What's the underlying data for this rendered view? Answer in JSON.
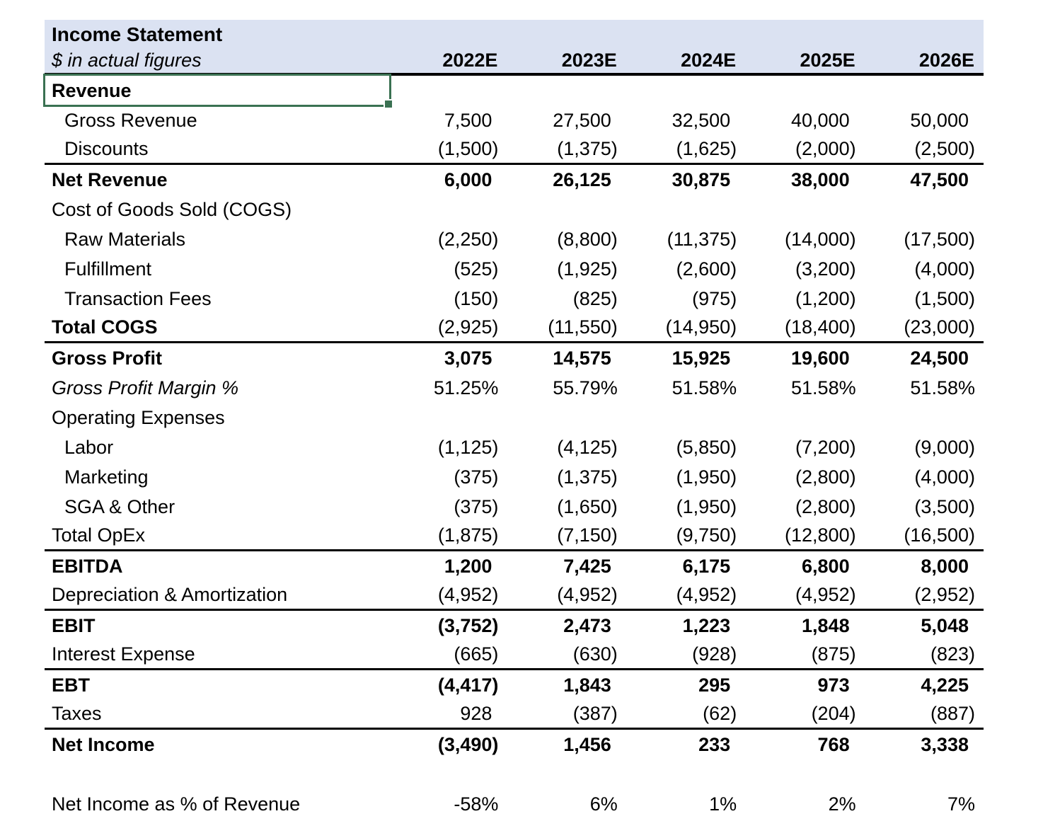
{
  "table": {
    "title": "Income Statement",
    "subtitle": "$ in actual figures",
    "columns": [
      "2022E",
      "2023E",
      "2024E",
      "2025E",
      "2026E"
    ],
    "selection": {
      "selected_cell_label": "Revenue",
      "border_color": "#3a7152"
    },
    "colors": {
      "header_bg": "#dbe2f2",
      "rule_color": "#000000",
      "text": "#000000"
    },
    "rows": [
      {
        "label": "Revenue",
        "bold": "label",
        "selected": true,
        "values": [
          "",
          "",
          "",
          "",
          ""
        ]
      },
      {
        "label": "Gross Revenue",
        "indent": true,
        "values": [
          "7,500",
          "27,500",
          "32,500",
          "40,000",
          "50,000"
        ]
      },
      {
        "label": "Discounts",
        "indent": true,
        "border": true,
        "values": [
          "(1,500)",
          "(1,375)",
          "(1,625)",
          "(2,000)",
          "(2,500)"
        ]
      },
      {
        "label": "Net Revenue",
        "bold": "all",
        "values": [
          "6,000",
          "26,125",
          "30,875",
          "38,000",
          "47,500"
        ]
      },
      {
        "label": "Cost of Goods Sold (COGS)",
        "values": [
          "",
          "",
          "",
          "",
          ""
        ]
      },
      {
        "label": "Raw Materials",
        "indent": true,
        "values": [
          "(2,250)",
          "(8,800)",
          "(11,375)",
          "(14,000)",
          "(17,500)"
        ]
      },
      {
        "label": "Fulfillment",
        "indent": true,
        "values": [
          "(525)",
          "(1,925)",
          "(2,600)",
          "(3,200)",
          "(4,000)"
        ]
      },
      {
        "label": "Transaction Fees",
        "indent": true,
        "values": [
          "(150)",
          "(825)",
          "(975)",
          "(1,200)",
          "(1,500)"
        ]
      },
      {
        "label": "Total COGS",
        "bold": "label",
        "border": true,
        "values": [
          "(2,925)",
          "(11,550)",
          "(14,950)",
          "(18,400)",
          "(23,000)"
        ]
      },
      {
        "label": "Gross Profit",
        "bold": "all",
        "values": [
          "3,075",
          "14,575",
          "15,925",
          "19,600",
          "24,500"
        ]
      },
      {
        "label": "Gross Profit Margin %",
        "italic": true,
        "values": [
          "51.25%",
          "55.79%",
          "51.58%",
          "51.58%",
          "51.58%"
        ]
      },
      {
        "label": "Operating Expenses",
        "values": [
          "",
          "",
          "",
          "",
          ""
        ]
      },
      {
        "label": "Labor",
        "indent": true,
        "values": [
          "(1,125)",
          "(4,125)",
          "(5,850)",
          "(7,200)",
          "(9,000)"
        ]
      },
      {
        "label": "Marketing",
        "indent": true,
        "values": [
          "(375)",
          "(1,375)",
          "(1,950)",
          "(2,800)",
          "(4,000)"
        ]
      },
      {
        "label": "SGA & Other",
        "indent": true,
        "values": [
          "(375)",
          "(1,650)",
          "(1,950)",
          "(2,800)",
          "(3,500)"
        ]
      },
      {
        "label": "Total OpEx",
        "border": true,
        "values": [
          "(1,875)",
          "(7,150)",
          "(9,750)",
          "(12,800)",
          "(16,500)"
        ]
      },
      {
        "label": "EBITDA",
        "bold": "all",
        "values": [
          "1,200",
          "7,425",
          "6,175",
          "6,800",
          "8,000"
        ]
      },
      {
        "label": "Depreciation & Amortization",
        "border": true,
        "values": [
          "(4,952)",
          "(4,952)",
          "(4,952)",
          "(4,952)",
          "(2,952)"
        ]
      },
      {
        "label": "EBIT",
        "bold": "all",
        "values": [
          "(3,752)",
          "2,473",
          "1,223",
          "1,848",
          "5,048"
        ]
      },
      {
        "label": "Interest Expense",
        "border": true,
        "values": [
          "(665)",
          "(630)",
          "(928)",
          "(875)",
          "(823)"
        ]
      },
      {
        "label": "EBT",
        "bold": "all",
        "values": [
          "(4,417)",
          "1,843",
          "295",
          "973",
          "4,225"
        ]
      },
      {
        "label": "Taxes",
        "border": true,
        "values": [
          "928",
          "(387)",
          "(62)",
          "(204)",
          "(887)"
        ]
      },
      {
        "label": "Net Income",
        "bold": "all",
        "values": [
          "(3,490)",
          "1,456",
          "233",
          "768",
          "3,338"
        ]
      },
      {
        "label": "",
        "spacer": true,
        "values": [
          "",
          "",
          "",
          "",
          ""
        ]
      },
      {
        "label": "Net Income as % of Revenue",
        "values": [
          "-58%",
          "6%",
          "1%",
          "2%",
          "7%"
        ]
      }
    ]
  }
}
